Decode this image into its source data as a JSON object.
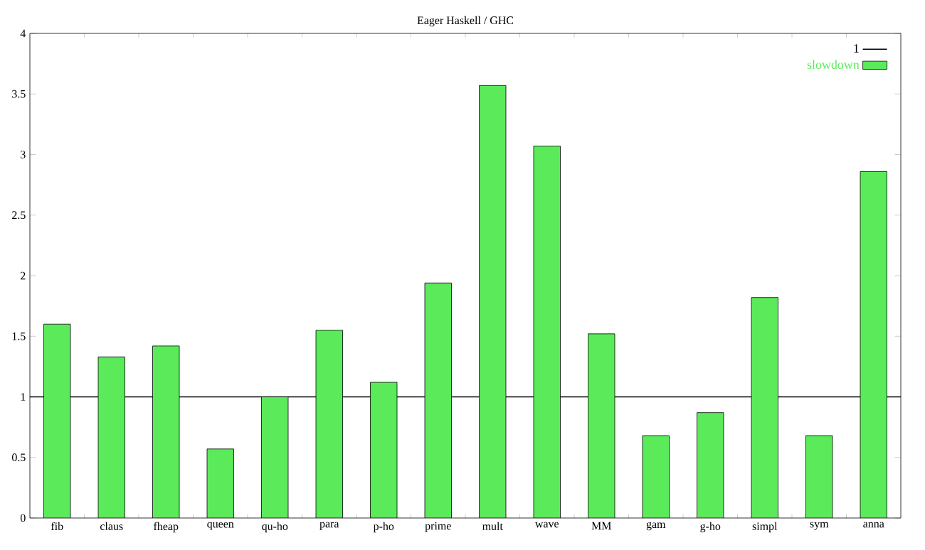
{
  "chart_data": {
    "type": "bar",
    "title": "Eager Haskell / GHC",
    "categories": [
      "fib",
      "claus",
      "fheap",
      "queen",
      "qu-ho",
      "para",
      "p-ho",
      "prime",
      "mult",
      "wave",
      "MM",
      "gam",
      "g-ho",
      "simpl",
      "sym",
      "anna"
    ],
    "series": [
      {
        "name": "slowdown",
        "color": "#5aea5a",
        "values": [
          1.6,
          1.33,
          1.42,
          0.57,
          1.0,
          1.55,
          1.12,
          1.94,
          3.57,
          3.07,
          1.52,
          0.68,
          0.87,
          1.82,
          0.68,
          2.86
        ]
      }
    ],
    "ylim": [
      0,
      4
    ],
    "yticks": [
      0,
      0.5,
      1,
      1.5,
      2,
      2.5,
      3,
      3.5,
      4
    ],
    "ref_lines": [
      {
        "axis": "y",
        "value": 1,
        "label": "1",
        "color": "#000000"
      }
    ],
    "legend": "top right",
    "grid": false
  }
}
